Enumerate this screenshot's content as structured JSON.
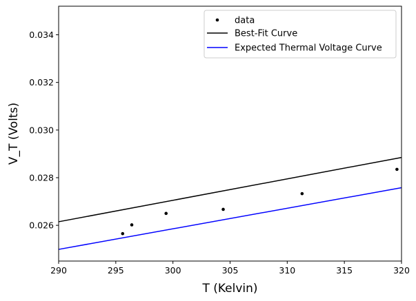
{
  "chart_data": {
    "type": "scatter",
    "xlabel": "T (Kelvin)",
    "ylabel": "V_T (Volts)",
    "xlim": [
      290,
      320
    ],
    "ylim": [
      0.0245,
      0.0352
    ],
    "x_ticks": [
      290,
      295,
      300,
      305,
      310,
      315,
      320
    ],
    "x_tick_labels": [
      "290",
      "295",
      "300",
      "305",
      "310",
      "315",
      "320"
    ],
    "y_ticks": [
      0.026,
      0.028,
      0.03,
      0.032,
      0.034
    ],
    "y_tick_labels": [
      "0.026",
      "0.028",
      "0.030",
      "0.032",
      "0.034"
    ],
    "grid": false,
    "legend_position": "upper right",
    "series": [
      {
        "name": "data",
        "kind": "points",
        "color": "#000000",
        "x": [
          295.6,
          296.4,
          299.4,
          304.4,
          311.3,
          319.6
        ],
        "y": [
          0.02565,
          0.02602,
          0.0265,
          0.02667,
          0.02733,
          0.02835
        ]
      },
      {
        "name": "Best-Fit Curve",
        "kind": "line",
        "color": "#000000",
        "x": [
          290,
          320
        ],
        "y": [
          0.02615,
          0.02885
        ]
      },
      {
        "name": "Expected Thermal Voltage Curve",
        "kind": "line",
        "color": "#0000ff",
        "x": [
          290,
          320
        ],
        "y": [
          0.02499,
          0.02758
        ]
      }
    ]
  }
}
